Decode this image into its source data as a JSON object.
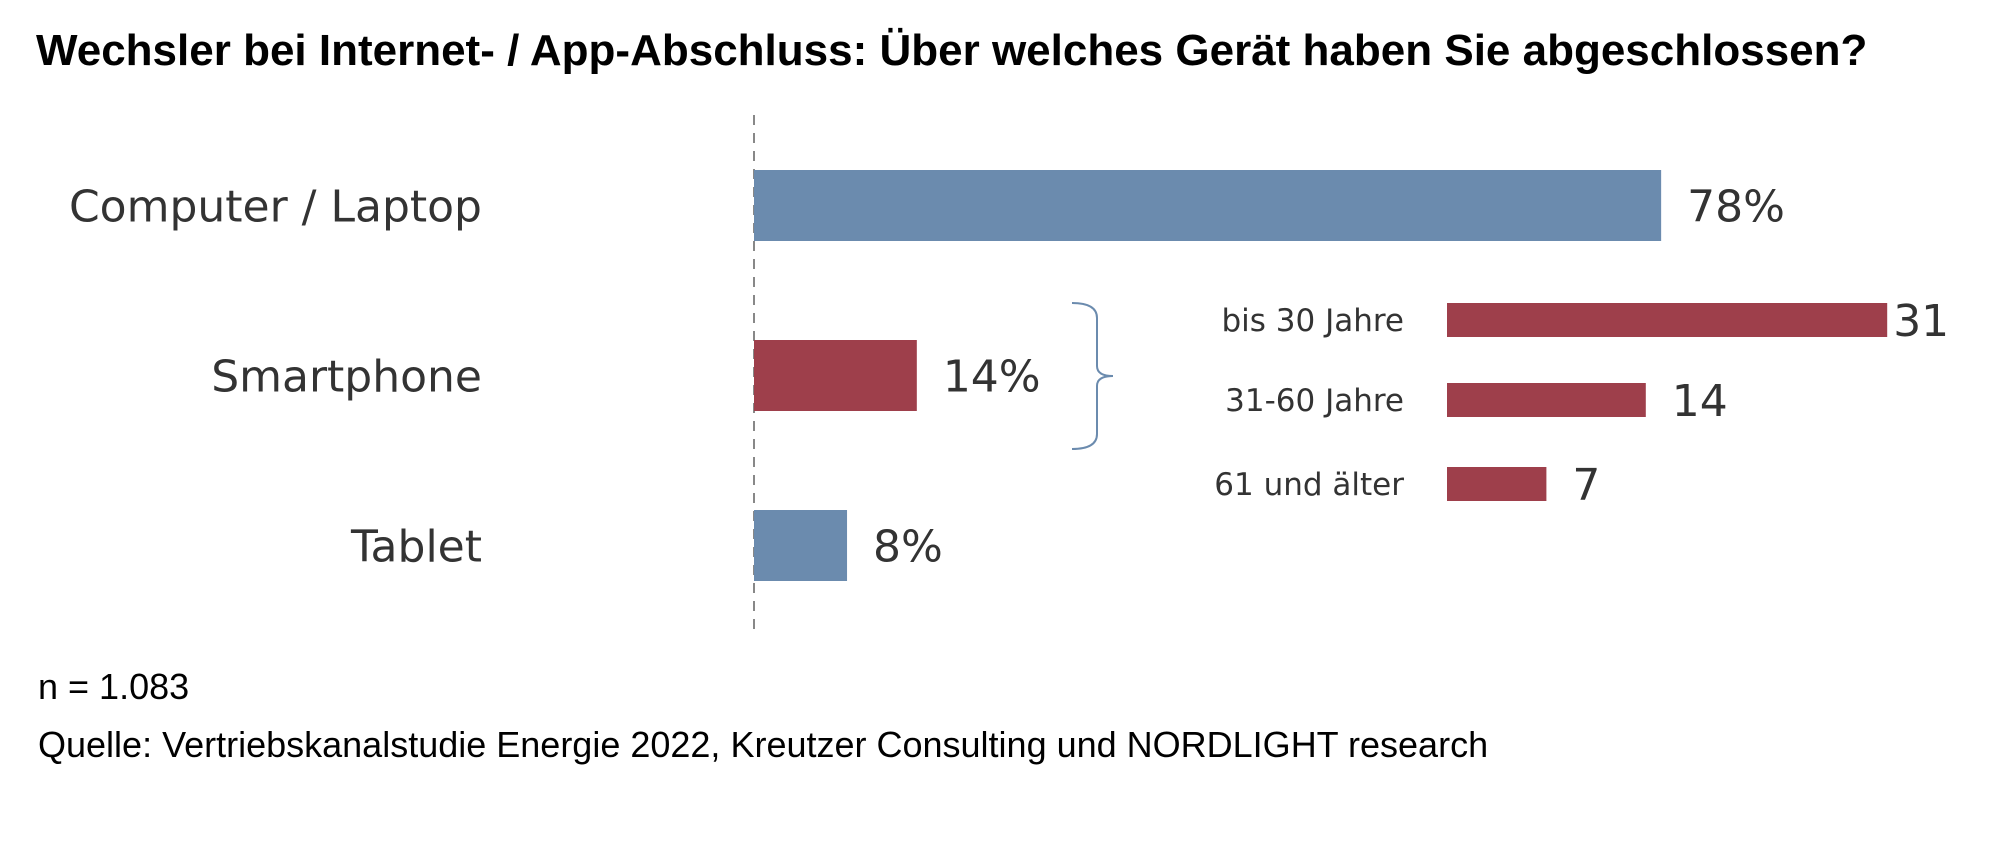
{
  "title": "Wechsler bei Internet- / App-Abschluss: Über welches Gerät haben Sie abgeschlossen?",
  "colors": {
    "blue": "#6B8BAE",
    "red": "#9E3F4B",
    "brace": "#6B8BAE"
  },
  "chart_data": [
    {
      "type": "bar",
      "orientation": "horizontal",
      "categories": [
        "Computer / Laptop",
        "Smartphone",
        "Tablet"
      ],
      "values": [
        78,
        14,
        8
      ],
      "labels": [
        "78%",
        "14%",
        "8%"
      ],
      "bar_colors": [
        "#6B8BAE",
        "#9E3F4B",
        "#6B8BAE"
      ],
      "unit": "%"
    },
    {
      "type": "bar",
      "orientation": "horizontal",
      "categories": [
        "bis 30 Jahre",
        "31-60 Jahre",
        "61 und älter"
      ],
      "values": [
        31,
        14,
        7
      ],
      "labels": [
        "31",
        "14",
        "7"
      ],
      "bar_color": "#9E3F4B"
    }
  ],
  "footer": {
    "n": "n = 1.083",
    "source": "Quelle: Vertriebskanalstudie Energie 2022, Kreutzer Consulting und NORDLIGHT research"
  }
}
